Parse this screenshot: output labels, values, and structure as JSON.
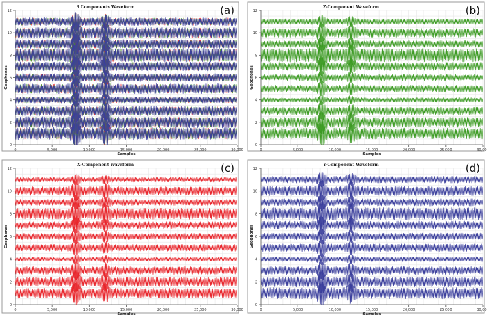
{
  "chart_data": [
    {
      "type": "line",
      "panel_label": "(a)",
      "title": "3 Components Waveform",
      "xlabel": "Samples",
      "ylabel": "Geophones",
      "xlim": [
        0,
        30000
      ],
      "ylim": [
        0,
        12
      ],
      "x_ticks": [
        0,
        5000,
        10000,
        15000,
        20000,
        25000,
        30000
      ],
      "x_tick_labels": [
        "0",
        "5,000",
        "10,000",
        "15,000",
        "20,000",
        "25,000",
        "30,000"
      ],
      "y_ticks": [
        0,
        2,
        4,
        6,
        8,
        10,
        12
      ],
      "y_tick_labels": [
        "0",
        "2",
        "4",
        "6",
        "8",
        "10",
        "12"
      ],
      "grid": true,
      "colors": [
        "#e8262c",
        "#3d9b24",
        "#3b3f9c"
      ],
      "traces": [
        1,
        2,
        3,
        4,
        5,
        6,
        7,
        8,
        9,
        10,
        11
      ],
      "event_samples": [
        8200,
        12200
      ],
      "amplitude": [
        0.55,
        0.5,
        0.42,
        0.28,
        0.45,
        0.35,
        0.4,
        0.62,
        0.4,
        0.48,
        0.36
      ]
    },
    {
      "type": "line",
      "panel_label": "(b)",
      "title": "Z-Component Waveform",
      "xlabel": "Samples",
      "ylabel": "Geophones",
      "xlim": [
        0,
        30000
      ],
      "ylim": [
        0,
        12
      ],
      "x_ticks": [
        0,
        5000,
        10000,
        15000,
        20000,
        25000,
        30000
      ],
      "x_tick_labels": [
        "0",
        "5,000",
        "10,000",
        "15,000",
        "20,000",
        "25,000",
        "30,000"
      ],
      "y_ticks": [
        0,
        2,
        4,
        6,
        8,
        10,
        12
      ],
      "y_tick_labels": [
        "0",
        "2",
        "4",
        "6",
        "8",
        "10",
        "12"
      ],
      "grid": true,
      "color": "#3d9b24",
      "traces": [
        1,
        2,
        3,
        4,
        5,
        6,
        7,
        8,
        9,
        10,
        11
      ],
      "event_samples": [
        8200,
        12200
      ],
      "amplitude": [
        0.5,
        0.45,
        0.35,
        0.2,
        0.32,
        0.28,
        0.36,
        0.6,
        0.3,
        0.4,
        0.25
      ]
    },
    {
      "type": "line",
      "panel_label": "(c)",
      "title": "X-Component Waveform",
      "xlabel": "Samples",
      "ylabel": "Geophones",
      "xlim": [
        0,
        30000
      ],
      "ylim": [
        0,
        12
      ],
      "x_ticks": [
        0,
        5000,
        10000,
        15000,
        20000,
        25000,
        30000
      ],
      "x_tick_labels": [
        "0",
        "5,000",
        "10,000",
        "15,000",
        "20,000",
        "25,000",
        "30,000"
      ],
      "y_ticks": [
        0,
        2,
        4,
        6,
        8,
        10,
        12
      ],
      "y_tick_labels": [
        "0",
        "2",
        "4",
        "6",
        "8",
        "10",
        "12"
      ],
      "grid": true,
      "color": "#e8262c",
      "traces": [
        1,
        2,
        3,
        4,
        5,
        6,
        7,
        8,
        9,
        10,
        11
      ],
      "event_samples": [
        8200,
        12200
      ],
      "amplitude": [
        0.45,
        0.42,
        0.35,
        0.18,
        0.3,
        0.28,
        0.32,
        0.5,
        0.28,
        0.38,
        0.22
      ]
    },
    {
      "type": "line",
      "panel_label": "(d)",
      "title": "Y-Component Waveform",
      "xlabel": "Samples",
      "ylabel": "Geophones",
      "xlim": [
        0,
        30000
      ],
      "ylim": [
        0,
        12
      ],
      "x_ticks": [
        0,
        5000,
        10000,
        15000,
        20000,
        25000,
        30000
      ],
      "x_tick_labels": [
        "0",
        "5,000",
        "10,000",
        "15,000",
        "20,000",
        "25,000",
        "30,000"
      ],
      "y_ticks": [
        0,
        2,
        4,
        6,
        8,
        10,
        12
      ],
      "y_tick_labels": [
        "0",
        "2",
        "4",
        "6",
        "8",
        "10",
        "12"
      ],
      "grid": true,
      "color": "#3b3f9c",
      "traces": [
        1,
        2,
        3,
        4,
        5,
        6,
        7,
        8,
        9,
        10,
        11
      ],
      "event_samples": [
        8200,
        12200
      ],
      "amplitude": [
        0.5,
        0.45,
        0.36,
        0.22,
        0.34,
        0.3,
        0.36,
        0.55,
        0.32,
        0.42,
        0.3
      ]
    }
  ]
}
